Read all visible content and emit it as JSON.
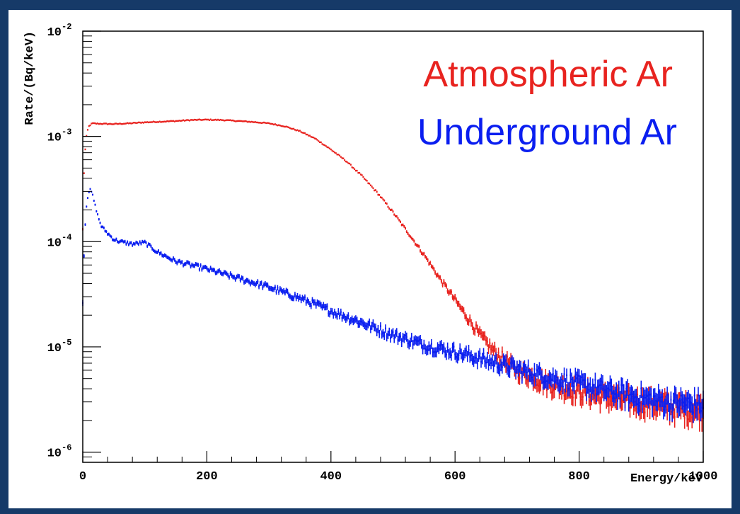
{
  "chart_data": {
    "type": "scatter",
    "title": "",
    "xlabel": "Energy/keV",
    "ylabel": "Rate/(Bq/keV)",
    "xlim": [
      0,
      1000
    ],
    "ylim": [
      8e-07,
      0.01
    ],
    "yscale": "log",
    "grid": false,
    "legend_position": "top-right",
    "x_ticks": [
      "0",
      "200",
      "400",
      "600",
      "800",
      "1000"
    ],
    "y_ticks": [
      {
        "base": "10",
        "exp": "-6",
        "value": 1e-06
      },
      {
        "base": "10",
        "exp": "-5",
        "value": 1e-05
      },
      {
        "base": "10",
        "exp": "-4",
        "value": 0.0001
      },
      {
        "base": "10",
        "exp": "-3",
        "value": 0.001
      },
      {
        "base": "10",
        "exp": "-2",
        "value": 0.01
      }
    ],
    "series": [
      {
        "name": "Atmospheric Ar",
        "color": "#e8231f",
        "points": [
          [
            0,
            0.00013
          ],
          [
            2,
            0.00045
          ],
          [
            4,
            0.00075
          ],
          [
            6,
            0.001
          ],
          [
            8,
            0.00115
          ],
          [
            10,
            0.00125
          ],
          [
            15,
            0.00133
          ],
          [
            25,
            0.00132
          ],
          [
            50,
            0.00131
          ],
          [
            75,
            0.00133
          ],
          [
            100,
            0.00136
          ],
          [
            125,
            0.00138
          ],
          [
            150,
            0.0014
          ],
          [
            175,
            0.00143
          ],
          [
            200,
            0.00144
          ],
          [
            225,
            0.00143
          ],
          [
            250,
            0.0014
          ],
          [
            275,
            0.00137
          ],
          [
            300,
            0.00133
          ],
          [
            325,
            0.00125
          ],
          [
            350,
            0.00112
          ],
          [
            375,
            0.00095
          ],
          [
            400,
            0.00075
          ],
          [
            425,
            0.00058
          ],
          [
            450,
            0.00042
          ],
          [
            475,
            0.00029
          ],
          [
            500,
            0.00019
          ],
          [
            525,
            0.00012
          ],
          [
            550,
            7.5e-05
          ],
          [
            575,
            4.5e-05
          ],
          [
            600,
            2.8e-05
          ],
          [
            620,
            1.9e-05
          ],
          [
            640,
            1.3e-05
          ],
          [
            660,
            9.5e-06
          ],
          [
            680,
            7.5e-06
          ],
          [
            700,
            6e-06
          ],
          [
            750,
            4.5e-06
          ],
          [
            800,
            3.8e-06
          ],
          [
            850,
            3.3e-06
          ],
          [
            900,
            3e-06
          ],
          [
            950,
            2.7e-06
          ],
          [
            1000,
            2.5e-06
          ]
        ]
      },
      {
        "name": "Underground Ar",
        "color": "#0a1ef0",
        "points": [
          [
            0,
            2.8e-05
          ],
          [
            3,
            0.00012
          ],
          [
            6,
            0.00022
          ],
          [
            9,
            0.00029
          ],
          [
            12,
            0.00031
          ],
          [
            15,
            0.00029
          ],
          [
            20,
            0.00022
          ],
          [
            25,
            0.00017
          ],
          [
            30,
            0.00014
          ],
          [
            40,
            0.00012
          ],
          [
            50,
            0.000105
          ],
          [
            60,
            0.0001
          ],
          [
            80,
            9.5e-05
          ],
          [
            100,
            9.8e-05
          ],
          [
            120,
            8e-05
          ],
          [
            150,
            6.5e-05
          ],
          [
            200,
            5.5e-05
          ],
          [
            250,
            4.5e-05
          ],
          [
            300,
            3.7e-05
          ],
          [
            350,
            2.9e-05
          ],
          [
            400,
            2.2e-05
          ],
          [
            450,
            1.7e-05
          ],
          [
            500,
            1.3e-05
          ],
          [
            550,
            1.05e-05
          ],
          [
            600,
            9e-06
          ],
          [
            650,
            7.5e-06
          ],
          [
            700,
            6.2e-06
          ],
          [
            750,
            5.2e-06
          ],
          [
            800,
            4.5e-06
          ],
          [
            850,
            3.8e-06
          ],
          [
            900,
            3.3e-06
          ],
          [
            950,
            3e-06
          ],
          [
            1000,
            2.8e-06
          ]
        ]
      }
    ]
  }
}
